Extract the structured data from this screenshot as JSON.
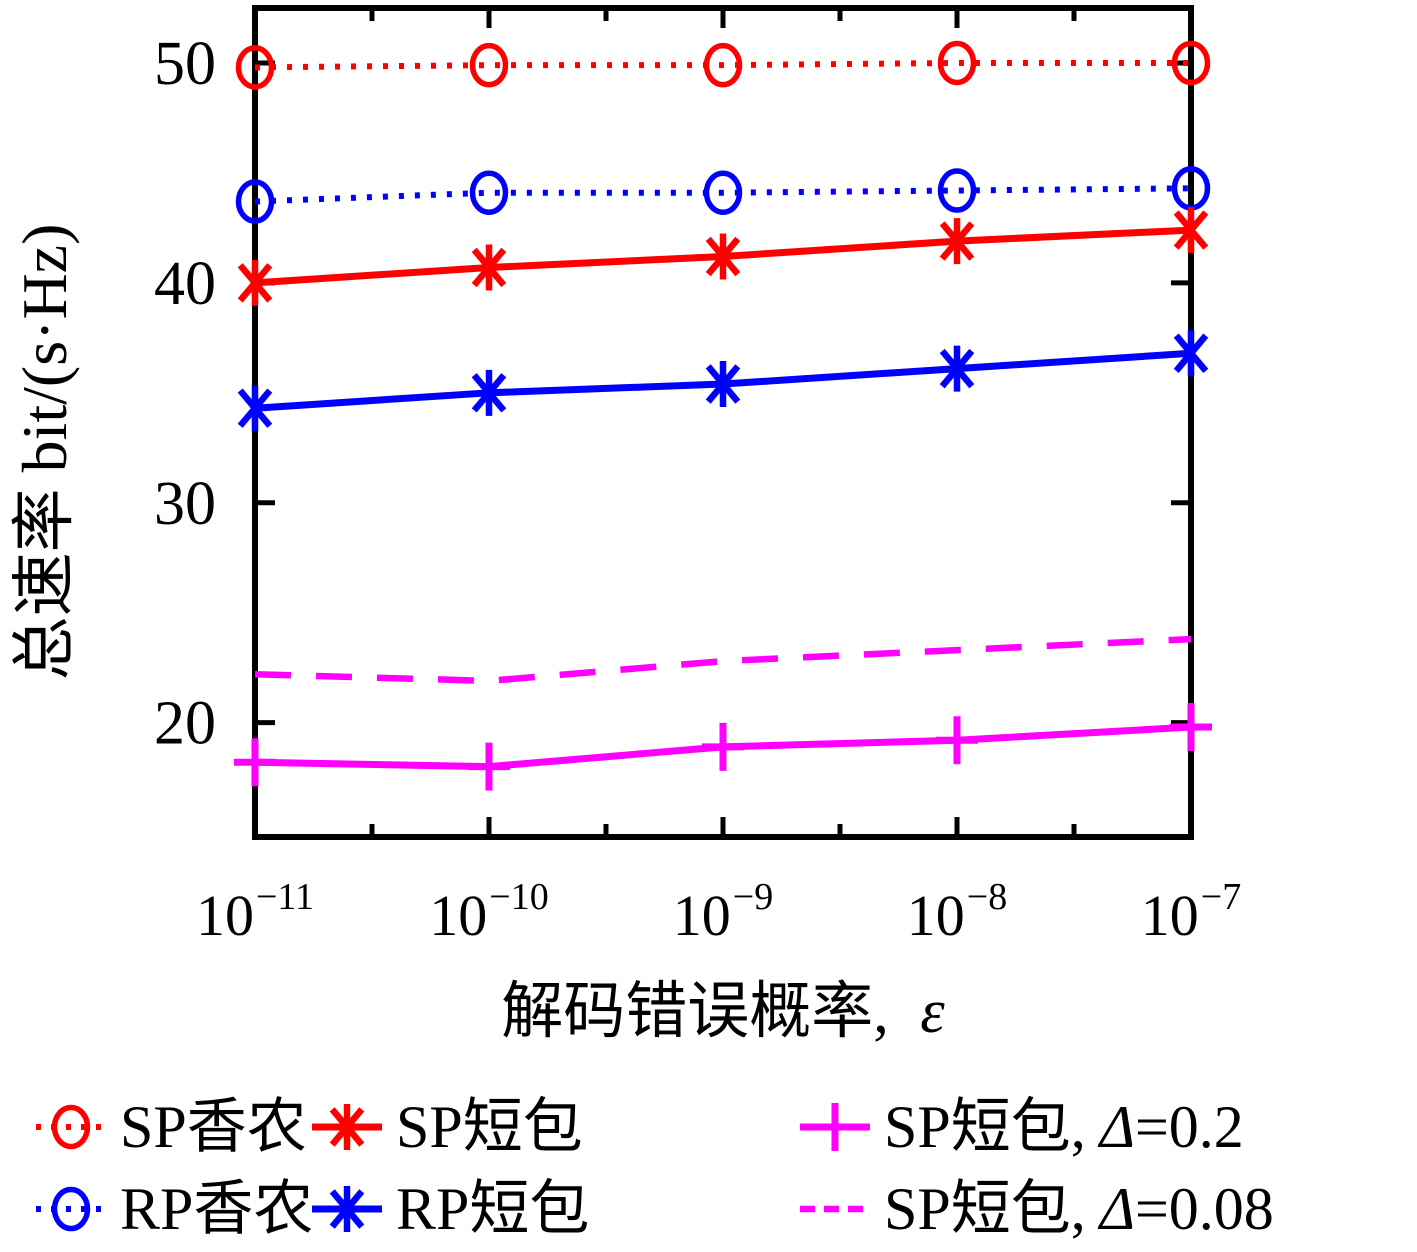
{
  "figure": {
    "background": "#ffffff",
    "text_color": "#000000"
  },
  "chart_data": {
    "type": "line",
    "title": "",
    "xlabel_text": "解码错误概率,",
    "xlabel_symbol": "ε",
    "ylabel": "总速率 bit/(s·Hz)",
    "x_scale": "log",
    "x_ticks": [
      {
        "base": "10",
        "exp": "−11"
      },
      {
        "base": "10",
        "exp": "−10"
      },
      {
        "base": "10",
        "exp": "−9"
      },
      {
        "base": "10",
        "exp": "−8"
      },
      {
        "base": "10",
        "exp": "−7"
      }
    ],
    "x_values": [
      1e-11,
      1e-10,
      1e-09,
      1e-08,
      1e-07
    ],
    "y_ticks": [
      50,
      40,
      30,
      20
    ],
    "ylim": [
      14.8,
      52.5
    ],
    "grid": false,
    "legend_position": "below",
    "series": [
      {
        "name": "SP香农",
        "color": "#ff0000",
        "line": "dotted",
        "marker": "circle",
        "values": [
          49.8,
          49.9,
          49.9,
          50.0,
          50.0
        ]
      },
      {
        "name": "RP香农",
        "color": "#0000ff",
        "line": "dotted",
        "marker": "circle",
        "values": [
          43.7,
          44.1,
          44.1,
          44.2,
          44.3
        ]
      },
      {
        "name": "SP短包",
        "color": "#ff0000",
        "line": "solid",
        "marker": "asterisk",
        "values": [
          40.0,
          40.7,
          41.2,
          41.9,
          42.4
        ]
      },
      {
        "name": "RP短包",
        "color": "#0000ff",
        "line": "solid",
        "marker": "asterisk",
        "values": [
          34.3,
          35.0,
          35.4,
          36.1,
          36.8
        ]
      },
      {
        "name": "SP短包, Δ=0.2",
        "color": "#ff00ff",
        "line": "solid",
        "marker": "plus",
        "values": [
          18.2,
          18.0,
          18.9,
          19.2,
          19.8
        ]
      },
      {
        "name": "SP短包, Δ=0.08",
        "color": "#ff00ff",
        "line": "dashed",
        "marker": "none",
        "values": [
          22.2,
          21.9,
          22.8,
          23.3,
          23.8
        ]
      }
    ],
    "legend_rows": [
      [
        {
          "series": 0,
          "name": "SP香农",
          "delta_sym": "",
          "delta_val": ""
        },
        {
          "series": 2,
          "name": "SP短包",
          "delta_sym": "",
          "delta_val": ""
        },
        {
          "series": 4,
          "name": "SP短包,",
          "delta_sym": "Δ",
          "delta_val": "=0.2"
        }
      ],
      [
        {
          "series": 1,
          "name": "RP香农",
          "delta_sym": "",
          "delta_val": ""
        },
        {
          "series": 3,
          "name": "RP短包",
          "delta_sym": "",
          "delta_val": ""
        },
        {
          "series": 5,
          "name": "SP短包,",
          "delta_sym": "Δ",
          "delta_val": "=0.08"
        }
      ]
    ]
  }
}
